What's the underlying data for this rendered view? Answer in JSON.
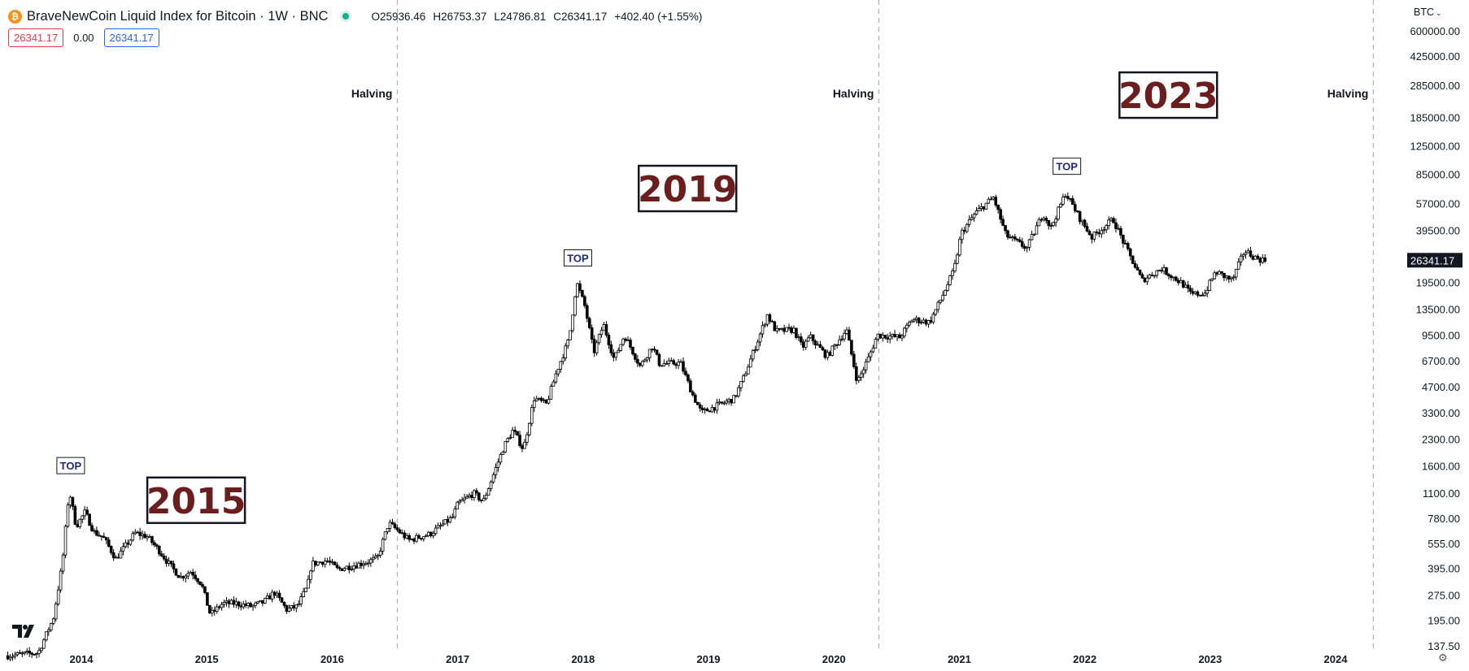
{
  "header": {
    "title": "BraveNewCoin Liquid Index for Bitcoin · 1W · BNC",
    "coin_icon": "bitcoin-icon",
    "ohlc": {
      "open_label": "O",
      "open": "25936.46",
      "high_label": "H",
      "high": "26753.37",
      "low_label": "L",
      "low": "24786.81",
      "close_label": "C",
      "close": "26341.17",
      "change": "+402.40 (+1.55%)"
    },
    "bid": "26341.17",
    "spread": "0.00",
    "ask": "26341.17",
    "currency": "BTC"
  },
  "colors": {
    "candle": "#000000",
    "year_text": "#6b1e1e",
    "top_text": "#1e2a8a",
    "bid": "#f23645",
    "ask": "#2962ff",
    "status": "#22ab94",
    "gridline": "#b2b5be"
  },
  "chart_data": {
    "type": "candlestick",
    "scale": "log",
    "ylim": [
      137.5,
      600000
    ],
    "xlim": [
      "2013-06-01",
      "2024-08-01"
    ],
    "yticks": [
      "600000.00",
      "425000.00",
      "285000.00",
      "185000.00",
      "125000.00",
      "85000.00",
      "57000.00",
      "39500.00",
      "26341.17",
      "19500.00",
      "13500.00",
      "9500.00",
      "6700.00",
      "4700.00",
      "3300.00",
      "2300.00",
      "1600.00",
      "1100.00",
      "780.00",
      "555.00",
      "395.00",
      "275.00",
      "195.00",
      "137.50"
    ],
    "xticks": [
      "2014",
      "2015",
      "2016",
      "2017",
      "2018",
      "2019",
      "2020",
      "2021",
      "2022",
      "2023",
      "2024"
    ],
    "last_price": "26341.17",
    "halvings": [
      {
        "date": "2016-07-09",
        "label": "Halving"
      },
      {
        "date": "2020-05-11",
        "label": "Halving"
      },
      {
        "date": "2024-04-20",
        "label": "Halving"
      }
    ],
    "tops": [
      {
        "date": "2013-12-01",
        "price": 1150,
        "label": "TOP"
      },
      {
        "date": "2017-12-17",
        "price": 19500,
        "label": "TOP"
      },
      {
        "date": "2021-11-10",
        "price": 68000,
        "label": "TOP"
      }
    ],
    "year_labels": [
      {
        "text": "2015",
        "date": "2014-12-01",
        "price": 1000
      },
      {
        "text": "2019",
        "date": "2018-11-01",
        "price": 70000
      },
      {
        "text": "2023",
        "date": "2022-09-01",
        "price": 250000
      }
    ],
    "path": [
      [
        "2013-06-01",
        120
      ],
      [
        "2013-09-01",
        125
      ],
      [
        "2013-10-15",
        200
      ],
      [
        "2013-11-10",
        420
      ],
      [
        "2013-11-30",
        1150
      ],
      [
        "2013-12-20",
        700
      ],
      [
        "2014-01-15",
        850
      ],
      [
        "2014-02-10",
        650
      ],
      [
        "2014-03-10",
        600
      ],
      [
        "2014-04-15",
        450
      ],
      [
        "2014-05-20",
        560
      ],
      [
        "2014-06-10",
        640
      ],
      [
        "2014-07-15",
        610
      ],
      [
        "2014-08-20",
        500
      ],
      [
        "2014-09-20",
        410
      ],
      [
        "2014-10-20",
        350
      ],
      [
        "2014-11-20",
        380
      ],
      [
        "2014-12-20",
        320
      ],
      [
        "2015-01-15",
        210
      ],
      [
        "2015-02-20",
        245
      ],
      [
        "2015-04-01",
        245
      ],
      [
        "2015-05-15",
        235
      ],
      [
        "2015-06-20",
        250
      ],
      [
        "2015-07-20",
        285
      ],
      [
        "2015-08-25",
        225
      ],
      [
        "2015-09-25",
        235
      ],
      [
        "2015-10-25",
        310
      ],
      [
        "2015-11-05",
        420
      ],
      [
        "2015-12-20",
        440
      ],
      [
        "2016-01-20",
        390
      ],
      [
        "2016-03-15",
        415
      ],
      [
        "2016-05-15",
        450
      ],
      [
        "2016-06-17",
        730
      ],
      [
        "2016-07-15",
        660
      ],
      [
        "2016-08-15",
        580
      ],
      [
        "2016-10-15",
        630
      ],
      [
        "2016-12-20",
        790
      ],
      [
        "2017-01-05",
        950
      ],
      [
        "2017-02-20",
        1100
      ],
      [
        "2017-03-20",
        980
      ],
      [
        "2017-05-20",
        2100
      ],
      [
        "2017-06-15",
        2600
      ],
      [
        "2017-07-15",
        2000
      ],
      [
        "2017-08-15",
        4000
      ],
      [
        "2017-09-20",
        3700
      ],
      [
        "2017-10-20",
        5800
      ],
      [
        "2017-11-25",
        9000
      ],
      [
        "2017-12-17",
        19500
      ],
      [
        "2018-01-10",
        14000
      ],
      [
        "2018-02-05",
        7500
      ],
      [
        "2018-03-05",
        11000
      ],
      [
        "2018-04-05",
        6800
      ],
      [
        "2018-05-05",
        9500
      ],
      [
        "2018-06-20",
        6200
      ],
      [
        "2018-07-25",
        8200
      ],
      [
        "2018-08-15",
        6400
      ],
      [
        "2018-10-15",
        6500
      ],
      [
        "2018-11-20",
        4200
      ],
      [
        "2018-12-15",
        3300
      ],
      [
        "2019-01-20",
        3550
      ],
      [
        "2019-03-20",
        4000
      ],
      [
        "2019-04-15",
        5200
      ],
      [
        "2019-05-20",
        8000
      ],
      [
        "2019-06-25",
        12500
      ],
      [
        "2019-07-20",
        10000
      ],
      [
        "2019-09-10",
        10200
      ],
      [
        "2019-10-05",
        8000
      ],
      [
        "2019-10-27",
        9300
      ],
      [
        "2019-12-15",
        7100
      ],
      [
        "2020-02-10",
        10200
      ],
      [
        "2020-03-13",
        5000
      ],
      [
        "2020-04-15",
        7000
      ],
      [
        "2020-05-10",
        9500
      ],
      [
        "2020-07-15",
        9200
      ],
      [
        "2020-08-20",
        11800
      ],
      [
        "2020-10-10",
        11300
      ],
      [
        "2020-11-15",
        16000
      ],
      [
        "2020-12-20",
        23000
      ],
      [
        "2021-01-10",
        38000
      ],
      [
        "2021-02-20",
        50000
      ],
      [
        "2021-04-14",
        62000
      ],
      [
        "2021-05-20",
        37000
      ],
      [
        "2021-07-20",
        31000
      ],
      [
        "2021-09-05",
        50000
      ],
      [
        "2021-09-28",
        41000
      ],
      [
        "2021-11-10",
        66000
      ],
      [
        "2021-12-20",
        47000
      ],
      [
        "2022-01-25",
        36000
      ],
      [
        "2022-03-28",
        46000
      ],
      [
        "2022-05-12",
        29000
      ],
      [
        "2022-06-20",
        20000
      ],
      [
        "2022-08-15",
        23500
      ],
      [
        "2022-10-15",
        19200
      ],
      [
        "2022-11-10",
        16500
      ],
      [
        "2022-12-20",
        16800
      ],
      [
        "2023-01-20",
        22500
      ],
      [
        "2023-03-10",
        20000
      ],
      [
        "2023-04-14",
        30000
      ],
      [
        "2023-05-20",
        27000
      ],
      [
        "2023-06-10",
        26341
      ]
    ]
  }
}
